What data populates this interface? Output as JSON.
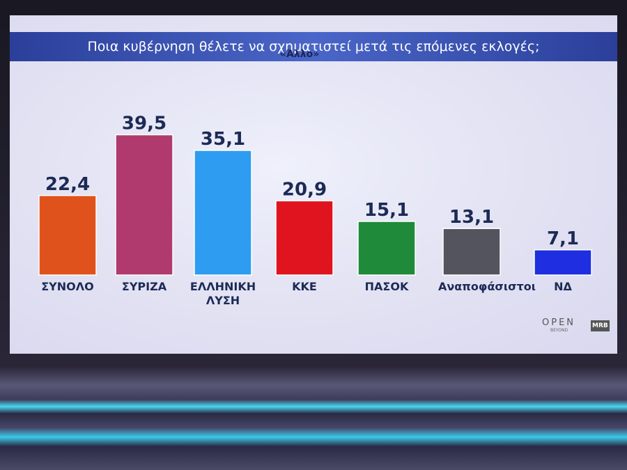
{
  "chart_data": {
    "type": "bar",
    "title": "Ποια κυβέρνηση θέλετε να σχηματιστεί μετά τις επόμενες εκλογές;",
    "subtitle": "«Άλλο»",
    "categories": [
      "ΣΥΝΟΛΟ",
      "ΣΥΡΙΖΑ",
      "ΕΛΛΗΝΙΚΗ ΛΥΣΗ",
      "ΚΚΕ",
      "ΠΑΣΟΚ",
      "Αναποφάσιστοι",
      "ΝΔ"
    ],
    "values": [
      22.4,
      39.5,
      35.1,
      20.9,
      15.1,
      13.1,
      7.1
    ],
    "value_labels": [
      "22,4",
      "39,5",
      "35,1",
      "20,9",
      "15,1",
      "13,1",
      "7,1"
    ],
    "colors": [
      "#e0521c",
      "#b03a6e",
      "#2e9cf0",
      "#e0141e",
      "#1f8a3a",
      "#54545e",
      "#1e2ee0"
    ],
    "branding": {
      "logo": "OPEN",
      "tagline": "BEYOND",
      "source": "MRB"
    }
  }
}
